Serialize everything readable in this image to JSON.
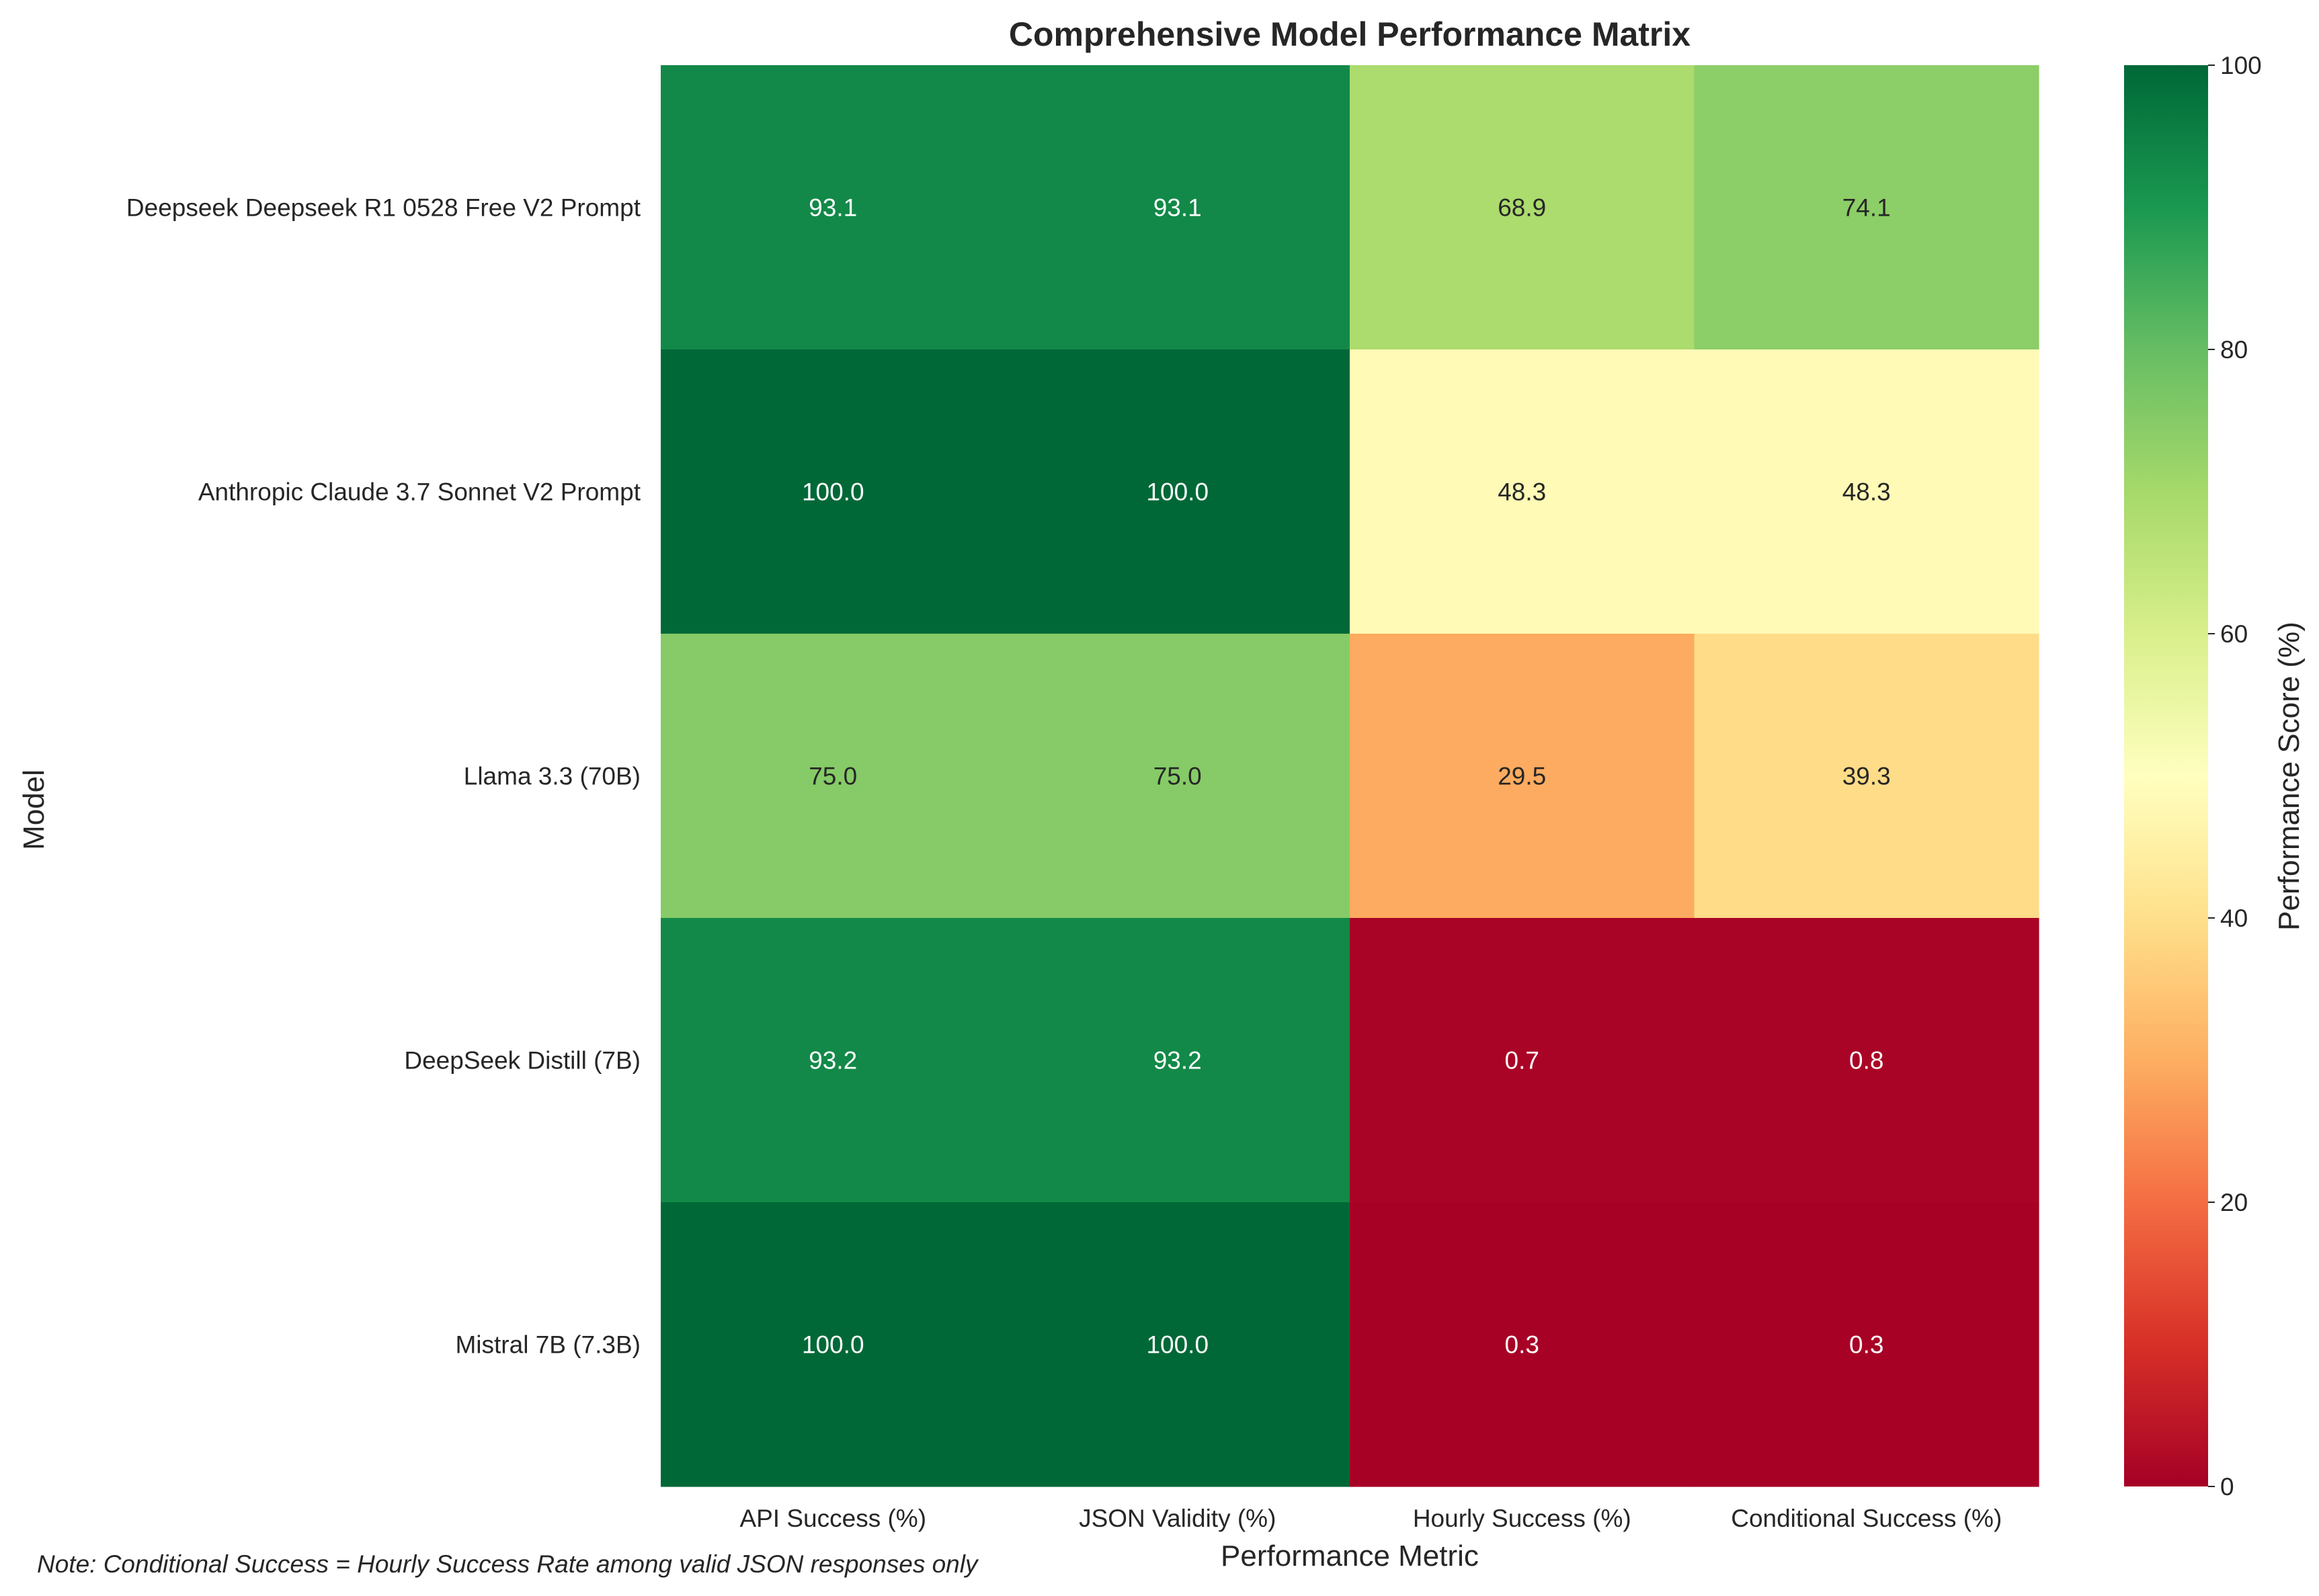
{
  "chart_data": {
    "type": "heatmap",
    "title": "Comprehensive Model Performance Matrix",
    "xlabel": "Performance Metric",
    "ylabel": "Model",
    "x_categories": [
      "API Success (%)",
      "JSON Validity (%)",
      "Hourly Success (%)",
      "Conditional Success (%)"
    ],
    "y_categories": [
      "Deepseek Deepseek R1 0528 Free V2 Prompt",
      "Anthropic Claude 3.7 Sonnet V2 Prompt",
      "Llama 3.3 (70B)",
      "DeepSeek Distill (7B)",
      "Mistral 7B (7.3B)"
    ],
    "values": [
      [
        93.1,
        93.1,
        68.9,
        74.1
      ],
      [
        100.0,
        100.0,
        48.3,
        48.3
      ],
      [
        75.0,
        75.0,
        29.5,
        39.3
      ],
      [
        93.2,
        93.2,
        0.7,
        0.8
      ],
      [
        100.0,
        100.0,
        0.3,
        0.3
      ]
    ],
    "value_format": "0.1f",
    "colorbar": {
      "label": "Performance Score (%)",
      "range": [
        0,
        100
      ],
      "ticks": [
        0,
        20,
        40,
        60,
        80,
        100
      ],
      "colormap": "RdYlGn"
    },
    "grid": false
  },
  "note": "Note: Conditional Success = Hourly Success Rate among valid JSON responses only"
}
